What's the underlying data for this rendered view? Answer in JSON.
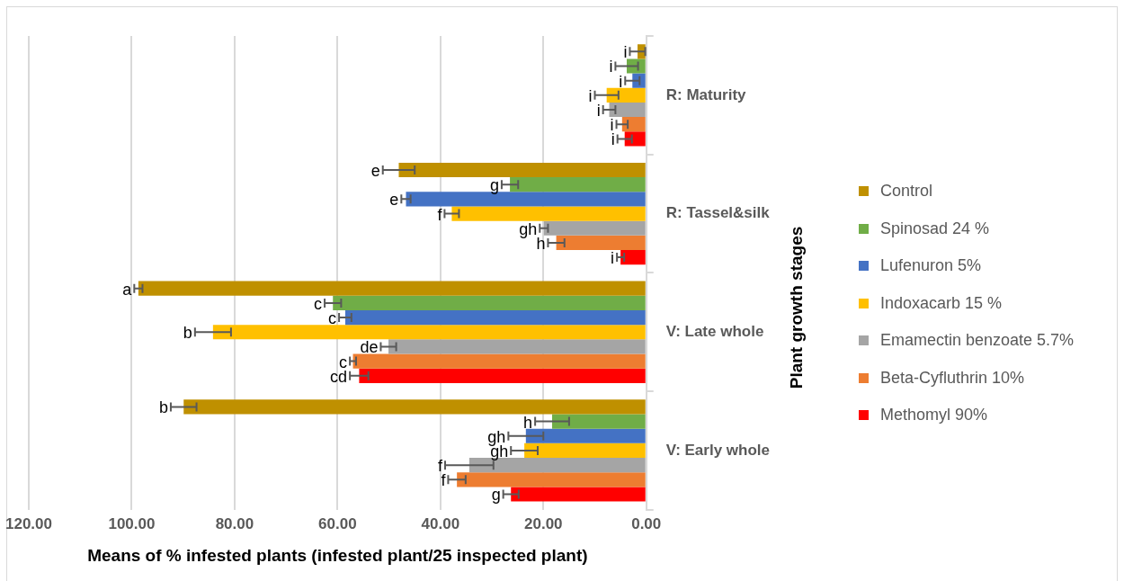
{
  "chart_data": {
    "type": "bar",
    "orientation": "horizontal",
    "xlabel": "Means of % infested plants (infested plant/25 inspected plant)",
    "ylabel": "Plant growth stages",
    "categories": [
      "R: Maturity",
      "R: Tassel&silk",
      "V: Late whole",
      "V: Early whole"
    ],
    "xlim": [
      120,
      0
    ],
    "xticks": [
      {
        "value": 120,
        "label": "120.00"
      },
      {
        "value": 100,
        "label": "100.00"
      },
      {
        "value": 80,
        "label": "80.00"
      },
      {
        "value": 60,
        "label": "60.00"
      },
      {
        "value": 40,
        "label": "40.00"
      },
      {
        "value": 20,
        "label": "20.00"
      },
      {
        "value": 0,
        "label": "0.00"
      }
    ],
    "grid": "x",
    "legend": "right",
    "series": [
      {
        "name": "Control",
        "color": "#bf9000",
        "values": [
          1.7,
          48.1,
          98.7,
          89.9
        ],
        "errors": [
          1.5,
          3.1,
          0.8,
          2.5
        ],
        "value_labels": [
          "i",
          "e",
          "a",
          "b"
        ]
      },
      {
        "name": "Spinosad 24 %",
        "color": "#70ad47",
        "values": [
          3.8,
          26.5,
          60.9,
          18.3
        ],
        "errors": [
          2.2,
          1.6,
          1.6,
          3.3
        ],
        "value_labels": [
          "i",
          "g",
          "c",
          "h"
        ]
      },
      {
        "name": "Lufenuron 5%",
        "color": "#4472c4",
        "values": [
          2.7,
          46.7,
          58.5,
          23.4
        ],
        "errors": [
          1.4,
          0.9,
          1.2,
          3.4
        ],
        "value_labels": [
          "i",
          "e",
          "c",
          "gh"
        ]
      },
      {
        "name": "Indoxacarb 15 %",
        "color": "#ffc000",
        "values": [
          7.7,
          37.8,
          84.2,
          23.7
        ],
        "errors": [
          2.3,
          1.4,
          3.5,
          2.6
        ],
        "value_labels": [
          "i",
          "f",
          "b",
          "gh"
        ]
      },
      {
        "name": "Emamectin benzoate 5.7%",
        "color": "#a5a5a5",
        "values": [
          7.2,
          19.9,
          50.1,
          34.4
        ],
        "errors": [
          1.2,
          0.8,
          1.5,
          4.7
        ],
        "value_labels": [
          "i",
          "gh",
          "de",
          "f"
        ]
      },
      {
        "name": "Beta-Cyfluthrin 10%",
        "color": "#ed7d31",
        "values": [
          4.7,
          17.5,
          57.0,
          36.8
        ],
        "errors": [
          1.1,
          1.6,
          0.6,
          1.7
        ],
        "value_labels": [
          "i",
          "h",
          "c",
          "f"
        ]
      },
      {
        "name": "Methomyl 90%",
        "color": "#ff0000",
        "values": [
          4.2,
          5.0,
          55.8,
          26.3
        ],
        "errors": [
          1.4,
          0.7,
          1.8,
          1.5
        ],
        "value_labels": [
          "i",
          "i",
          "cd",
          "g"
        ]
      }
    ]
  }
}
